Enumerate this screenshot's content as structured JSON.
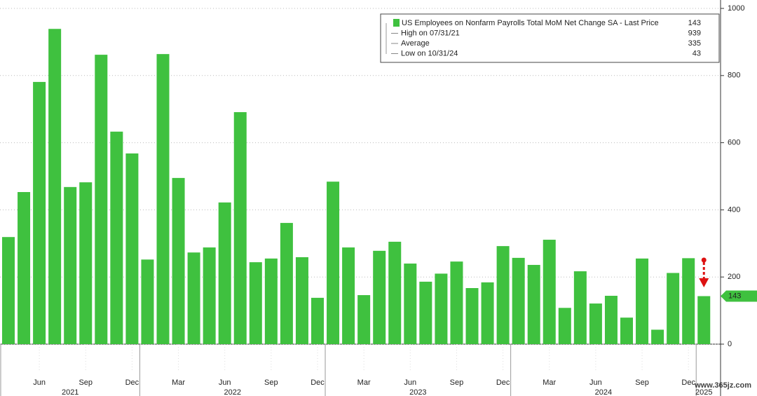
{
  "chart_data": {
    "type": "bar",
    "color": "#3fc13f",
    "categories": [
      null,
      null,
      "Jun",
      null,
      null,
      "Sep",
      null,
      null,
      "Dec",
      null,
      null,
      "Mar",
      null,
      null,
      "Jun",
      null,
      null,
      "Sep",
      null,
      null,
      "Dec",
      null,
      null,
      "Mar",
      null,
      null,
      "Jun",
      null,
      null,
      "Sep",
      null,
      null,
      "Dec",
      null,
      null,
      "Mar",
      null,
      null,
      "Jun",
      null,
      null,
      "Sep",
      null,
      null,
      "Dec",
      null
    ],
    "values": [
      319,
      453,
      781,
      939,
      468,
      482,
      862,
      633,
      568,
      252,
      864,
      495,
      273,
      288,
      422,
      691,
      244,
      255,
      361,
      259,
      138,
      484,
      288,
      146,
      278,
      305,
      240,
      186,
      210,
      246,
      167,
      184,
      292,
      257,
      236,
      311,
      108,
      217,
      121,
      144,
      79,
      255,
      43,
      212,
      256,
      143
    ],
    "years": [
      {
        "label": "2021",
        "first": 0,
        "last": 8
      },
      {
        "label": "2022",
        "first": 9,
        "last": 20
      },
      {
        "label": "2023",
        "first": 21,
        "last": 32
      },
      {
        "label": "2024",
        "first": 33,
        "last": 44
      },
      {
        "label": "2025",
        "first": 45,
        "last": 45
      }
    ],
    "ylim": [
      0,
      1000
    ],
    "yticks": [
      0,
      200,
      400,
      600,
      800,
      1000
    ],
    "grid": true,
    "legend": [
      {
        "label": "US Employees on Nonfarm Payrolls Total MoM Net Change SA - Last Price",
        "value": 143
      },
      {
        "label": "High on 07/31/21",
        "value": 939
      },
      {
        "label": "Average",
        "value": 335
      },
      {
        "label": "Low on 10/31/24",
        "value": 43
      }
    ],
    "watermark": "www.365jz.com"
  }
}
